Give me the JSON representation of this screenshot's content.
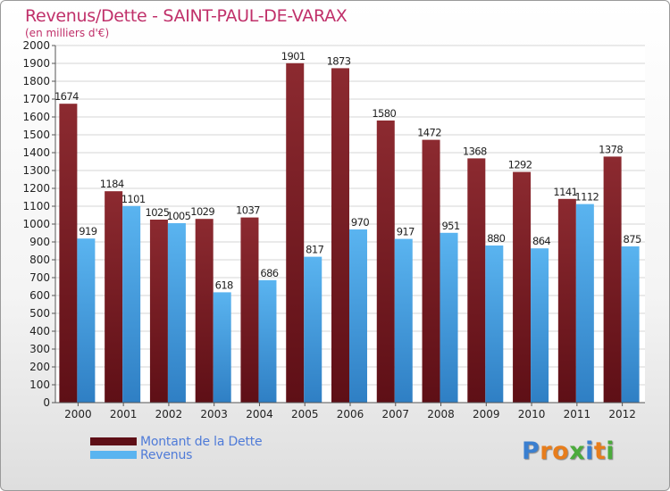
{
  "header": {
    "title": "Revenus/Dette - SAINT-PAUL-DE-VARAX",
    "subtitle": "(en milliers d'€)"
  },
  "logo": {
    "text": "Proxiti",
    "letters": [
      "P",
      "r",
      "o",
      "x",
      "i",
      "t",
      "i"
    ],
    "colors": [
      "#3a7fd0",
      "#e77d1c",
      "#e77d1c",
      "#4bab3c",
      "#3a7fd0",
      "#e77d1c",
      "#4bab3c"
    ]
  },
  "chart_data": {
    "type": "bar",
    "title": "Revenus/Dette - SAINT-PAUL-DE-VARAX",
    "subtitle": "(en milliers d'€)",
    "xlabel": "",
    "ylabel": "",
    "ylim": [
      0,
      2000
    ],
    "ytick_step": 100,
    "grid": true,
    "legend_position": "bottom-left",
    "categories": [
      "2000",
      "2001",
      "2002",
      "2003",
      "2004",
      "2005",
      "2006",
      "2007",
      "2008",
      "2009",
      "2010",
      "2011",
      "2012"
    ],
    "series": [
      {
        "name": "Montant de la Dette",
        "color_top": "#8c2a30",
        "color_bottom": "#5e0f16",
        "values": [
          1674,
          1184,
          1025,
          1029,
          1037,
          1901,
          1873,
          1580,
          1472,
          1368,
          1292,
          1141,
          1378
        ]
      },
      {
        "name": "Revenus",
        "color_top": "#5ab4f0",
        "color_bottom": "#2f7fc4",
        "values": [
          919,
          1101,
          1005,
          618,
          686,
          817,
          970,
          917,
          951,
          880,
          864,
          1112,
          875
        ]
      }
    ]
  }
}
